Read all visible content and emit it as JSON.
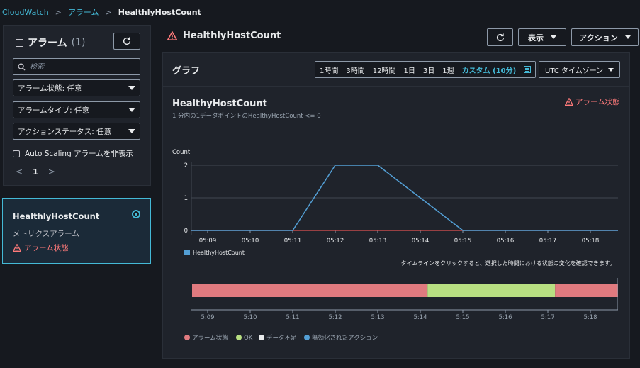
{
  "breadcrumb": {
    "root": "CloudWatch",
    "section": "アラーム",
    "current": "HealthlyHostCount"
  },
  "sidebar": {
    "title": "アラーム",
    "count": "(1)",
    "search_placeholder": "検索",
    "filters": [
      "アラーム状態: 任意",
      "アラームタイプ: 任意",
      "アクションステータス: 任意"
    ],
    "hide_autoscaling_label": "Auto Scaling アラームを非表示",
    "page": "1",
    "alarm": {
      "name": "HealthlyHostCount",
      "type": "メトリクスアラーム",
      "state": "アラーム状態"
    }
  },
  "header": {
    "title": "HealthlyHostCount",
    "view_label": "表示",
    "actions_label": "アクション"
  },
  "graph": {
    "section_title": "グラフ",
    "ranges": [
      "1時間",
      "3時間",
      "12時間",
      "1日",
      "3日",
      "1週"
    ],
    "active_range": "カスタム (10分)",
    "timezone": "UTC タイムゾーン",
    "title": "HealthyHostCount",
    "subtitle": "1 分内の1データポイントのHealthyHostCount <= 0",
    "state": "アラーム状態",
    "ylabel": "Count",
    "legend": "HealthyHostCount",
    "timeline_hint": "タイムラインをクリックすると、選択した時間における状態の変化を確認できます。",
    "timeline_legend": [
      "アラーム状態",
      "OK",
      "データ不足",
      "無効化されたアクション"
    ]
  },
  "colors": {
    "accent": "#44b9d6",
    "alarm": "#e07a7f",
    "ok": "#b8df82",
    "insufficient": "#e9ebed",
    "disabled": "#539fd5",
    "threshold": "#e05252"
  },
  "chart_data": {
    "type": "line",
    "x": [
      "05:09",
      "05:10",
      "05:11",
      "05:12",
      "05:13",
      "05:14",
      "05:15",
      "05:16",
      "05:17",
      "05:18"
    ],
    "series": [
      {
        "name": "HealthyHostCount",
        "values": [
          0,
          0,
          0,
          2,
          2,
          1,
          0,
          0,
          0,
          0
        ]
      }
    ],
    "threshold": 0,
    "ylim": [
      0,
      2
    ],
    "yticks": [
      0,
      1,
      2
    ],
    "timeline": {
      "ticks": [
        "5:09",
        "5:10",
        "5:11",
        "5:12",
        "5:13",
        "5:14",
        "5:15",
        "5:16",
        "5:17",
        "5:18"
      ],
      "segments": [
        {
          "state": "アラーム状態",
          "from": 5.15,
          "to": 14.17
        },
        {
          "state": "OK",
          "from": 14.17,
          "to": 17.17
        },
        {
          "state": "アラーム状態",
          "from": 17.17,
          "to": 18.65
        }
      ]
    }
  }
}
